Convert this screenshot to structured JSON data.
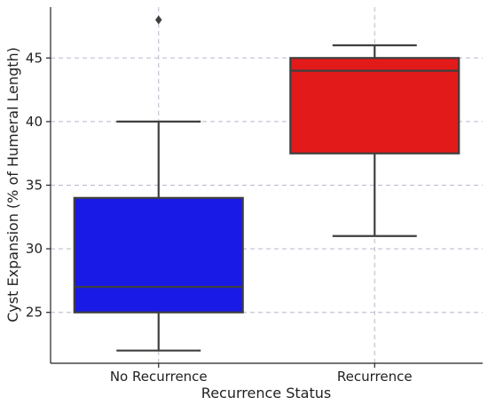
{
  "chart_data": {
    "type": "box",
    "title": "",
    "xlabel": "Recurrence Status",
    "ylabel": "Cyst Expansion (% of Humeral Length)",
    "categories": [
      "No Recurrence",
      "Recurrence"
    ],
    "boxes": [
      {
        "category": "No Recurrence",
        "whisker_low": 22,
        "q1": 25,
        "median": 27,
        "q3": 34,
        "whisker_high": 40,
        "outliers": [
          48
        ],
        "color": "#1a1ae6"
      },
      {
        "category": "Recurrence",
        "whisker_low": 31,
        "q1": 37.5,
        "median": 44,
        "q3": 45,
        "whisker_high": 46,
        "outliers": [],
        "color": "#e31a1a"
      }
    ],
    "yticks": [
      25,
      30,
      35,
      40,
      45
    ],
    "ylim": [
      21,
      49
    ],
    "grid": true,
    "legend": "none"
  }
}
